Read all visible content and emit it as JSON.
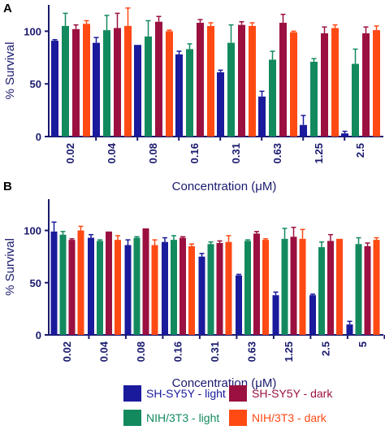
{
  "figure": {
    "legend": [
      {
        "label": "SH-SY5Y - light",
        "color": "#1a1a9c"
      },
      {
        "label": "SH-SY5Y - dark",
        "color": "#9b1040"
      },
      {
        "label": "NIH/3T3 - light",
        "color": "#138a5e"
      },
      {
        "label": "NIH/3T3 - dark",
        "color": "#ff4a14"
      }
    ],
    "axis_color": "#1a1a6e"
  },
  "chart_data": [
    {
      "panel": "A",
      "type": "bar",
      "xlabel": "Concentration (μM)",
      "ylabel": "% Survival",
      "ylim": [
        0,
        125
      ],
      "yticks": [
        0,
        50,
        100
      ],
      "categories": [
        "0.02",
        "0.04",
        "0.08",
        "0.16",
        "0.31",
        "0.63",
        "1.25",
        "2.5"
      ],
      "series": [
        {
          "name": "SH-SY5Y - light",
          "color": "#1a1a9c",
          "values": [
            91,
            89,
            87,
            78,
            61,
            38,
            11,
            3
          ],
          "errors": [
            1,
            5,
            0,
            3,
            2,
            5,
            9,
            2
          ]
        },
        {
          "name": "NIH/3T3 - light",
          "color": "#138a5e",
          "values": [
            105,
            101,
            95,
            83,
            89,
            73,
            71,
            69
          ],
          "errors": [
            12,
            14,
            15,
            5,
            17,
            8,
            3,
            14
          ]
        },
        {
          "name": "SH-SY5Y - dark",
          "color": "#9b1040",
          "values": [
            102,
            103,
            109,
            108,
            106,
            108,
            98,
            98
          ],
          "errors": [
            4,
            14,
            5,
            3,
            3,
            8,
            6,
            6
          ]
        },
        {
          "name": "NIH/3T3 - dark",
          "color": "#ff4a14",
          "values": [
            107,
            105,
            100,
            105,
            105,
            99,
            103,
            101
          ],
          "errors": [
            3,
            17,
            1,
            3,
            3,
            1,
            3,
            4
          ]
        }
      ]
    },
    {
      "panel": "B",
      "type": "bar",
      "xlabel": "Concentration (μM)",
      "ylabel": "% Survival",
      "ylim": [
        0,
        130
      ],
      "yticks": [
        0,
        50,
        100
      ],
      "categories": [
        "0.02",
        "0.04",
        "0.08",
        "0.16",
        "0.31",
        "0.63",
        "1.25",
        "2.5",
        "5"
      ],
      "series": [
        {
          "name": "SH-SY5Y - light",
          "color": "#1a1a9c",
          "values": [
            99,
            93,
            86,
            89,
            75,
            57,
            38,
            38,
            10
          ],
          "errors": [
            9,
            3,
            5,
            4,
            3,
            1,
            3,
            1,
            3
          ]
        },
        {
          "name": "NIH/3T3 - light",
          "color": "#138a5e",
          "values": [
            96,
            90,
            93,
            91,
            87,
            90,
            92,
            84,
            87
          ],
          "errors": [
            3,
            1,
            1,
            4,
            2,
            1,
            10,
            5,
            6
          ]
        },
        {
          "name": "SH-SY5Y - dark",
          "color": "#9b1040",
          "values": [
            91,
            99,
            102,
            93,
            88,
            97,
            94,
            90,
            85
          ],
          "errors": [
            1,
            0,
            0,
            1,
            2,
            2,
            9,
            6,
            3
          ]
        },
        {
          "name": "NIH/3T3 - dark",
          "color": "#ff4a14",
          "values": [
            100,
            91,
            86,
            85,
            89,
            91,
            92,
            92,
            91
          ],
          "errors": [
            4,
            4,
            5,
            2,
            6,
            1,
            9,
            0,
            2
          ]
        }
      ]
    }
  ]
}
